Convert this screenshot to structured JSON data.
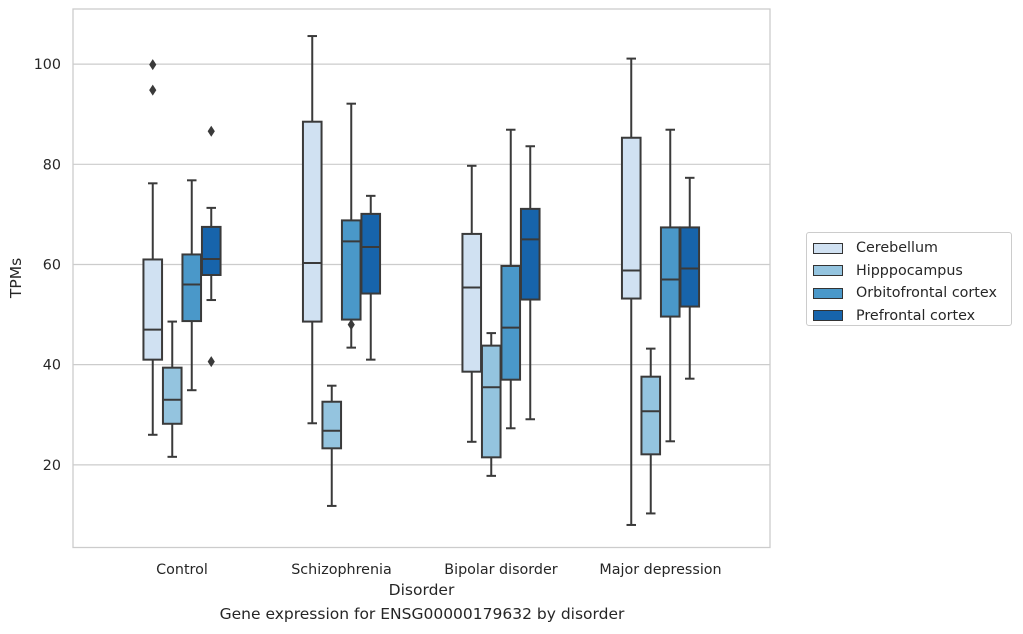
{
  "caption": "Gene expression for ENSG00000179632 by disorder",
  "chart_data": {
    "type": "box",
    "xlabel": "Disorder",
    "ylabel": "TPMs",
    "ylim": [
      3.5,
      111
    ],
    "y_ticks": [
      20,
      40,
      60,
      80,
      100
    ],
    "grid": "horizontal",
    "legend_position": "right",
    "categories": [
      "Control",
      "Schizophrenia",
      "Bipolar disorder",
      "Major depression"
    ],
    "series": [
      {
        "name": "Cerebellum",
        "color": "#d0e1f2",
        "boxes": [
          {
            "whislo": 26,
            "q1": 41,
            "med": 47,
            "q3": 61,
            "whishi": 76.2,
            "fliers": [
              94.8,
              99.9
            ]
          },
          {
            "whislo": 28.3,
            "q1": 48.6,
            "med": 60.3,
            "q3": 88.5,
            "whishi": 105.6,
            "fliers": []
          },
          {
            "whislo": 24.6,
            "q1": 38.6,
            "med": 55.4,
            "q3": 66.1,
            "whishi": 79.7,
            "fliers": []
          },
          {
            "whislo": 8,
            "q1": 53.2,
            "med": 58.8,
            "q3": 85.3,
            "whishi": 101.1,
            "fliers": []
          }
        ]
      },
      {
        "name": "Hipppocampus",
        "color": "#94c4df",
        "boxes": [
          {
            "whislo": 21.6,
            "q1": 28.2,
            "med": 33,
            "q3": 39.4,
            "whishi": 48.6,
            "fliers": []
          },
          {
            "whislo": 11.8,
            "q1": 23.3,
            "med": 26.8,
            "q3": 32.6,
            "whishi": 35.8,
            "fliers": []
          },
          {
            "whislo": 17.8,
            "q1": 21.5,
            "med": 35.5,
            "q3": 43.8,
            "whishi": 46.3,
            "fliers": []
          },
          {
            "whislo": 10.3,
            "q1": 22.1,
            "med": 30.7,
            "q3": 37.6,
            "whishi": 43.2,
            "fliers": []
          }
        ]
      },
      {
        "name": "Orbitofrontal cortex",
        "color": "#4a98c9",
        "boxes": [
          {
            "whislo": 34.9,
            "q1": 48.7,
            "med": 56,
            "q3": 62,
            "whishi": 76.8,
            "fliers": []
          },
          {
            "whislo": 43.4,
            "q1": 49,
            "med": 64.6,
            "q3": 68.8,
            "whishi": 92.1,
            "fliers": [
              48
            ]
          },
          {
            "whislo": 27.3,
            "q1": 37,
            "med": 47.4,
            "q3": 59.7,
            "whishi": 86.9,
            "fliers": []
          },
          {
            "whislo": 24.7,
            "q1": 49.6,
            "med": 57,
            "q3": 67.4,
            "whishi": 86.9,
            "fliers": []
          }
        ]
      },
      {
        "name": "Prefrontal cortex",
        "color": "#1764ab",
        "boxes": [
          {
            "whislo": 52.9,
            "q1": 57.9,
            "med": 61.1,
            "q3": 67.5,
            "whishi": 71.3,
            "fliers": [
              40.6,
              86.6
            ]
          },
          {
            "whislo": 41,
            "q1": 54.2,
            "med": 63.5,
            "q3": 70.1,
            "whishi": 73.7,
            "fliers": []
          },
          {
            "whislo": 29.1,
            "q1": 53,
            "med": 65,
            "q3": 71.1,
            "whishi": 83.6,
            "fliers": []
          },
          {
            "whislo": 37.2,
            "q1": 51.6,
            "med": 59.2,
            "q3": 67.4,
            "whishi": 77.3,
            "fliers": []
          }
        ]
      }
    ]
  }
}
